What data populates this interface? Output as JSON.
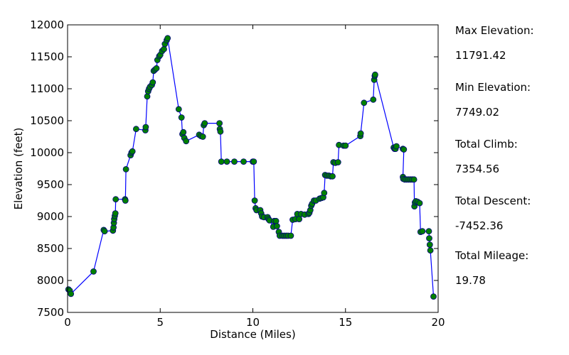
{
  "chart_data": {
    "type": "line",
    "title": "",
    "xlabel": "Distance (Miles)",
    "ylabel": "Elevation (feet)",
    "xlim": [
      0,
      20
    ],
    "ylim": [
      7500,
      12000
    ],
    "xticks": [
      "0",
      "5",
      "10",
      "15",
      "20"
    ],
    "yticks": [
      "7500",
      "8000",
      "8500",
      "9000",
      "9500",
      "10000",
      "10500",
      "11000",
      "11500",
      "12000"
    ],
    "grid": false,
    "legend": "none",
    "line_color": "#0000ff",
    "marker_color": "#008000",
    "series": [
      {
        "points": [
          [
            0.05,
            7860
          ],
          [
            0.12,
            7840
          ],
          [
            0.18,
            7790
          ],
          [
            1.4,
            8140
          ],
          [
            1.95,
            8790
          ],
          [
            2.0,
            8770
          ],
          [
            2.45,
            8780
          ],
          [
            2.48,
            8830
          ],
          [
            2.5,
            8900
          ],
          [
            2.52,
            8960
          ],
          [
            2.55,
            9010
          ],
          [
            2.58,
            9050
          ],
          [
            2.6,
            9270
          ],
          [
            3.1,
            9270
          ],
          [
            3.12,
            9250
          ],
          [
            3.15,
            9740
          ],
          [
            3.4,
            9960
          ],
          [
            3.45,
            10000
          ],
          [
            3.5,
            10020
          ],
          [
            3.7,
            10370
          ],
          [
            4.2,
            10350
          ],
          [
            4.22,
            10400
          ],
          [
            4.3,
            10880
          ],
          [
            4.35,
            10960
          ],
          [
            4.4,
            11000
          ],
          [
            4.45,
            11030
          ],
          [
            4.55,
            11060
          ],
          [
            4.6,
            11100
          ],
          [
            4.65,
            11280
          ],
          [
            4.72,
            11300
          ],
          [
            4.8,
            11320
          ],
          [
            4.85,
            11450
          ],
          [
            4.95,
            11510
          ],
          [
            5.0,
            11530
          ],
          [
            5.1,
            11590
          ],
          [
            5.2,
            11620
          ],
          [
            5.25,
            11700
          ],
          [
            5.35,
            11760
          ],
          [
            5.4,
            11791.42
          ],
          [
            6.0,
            10680
          ],
          [
            6.15,
            10550
          ],
          [
            6.2,
            10290
          ],
          [
            6.25,
            10320
          ],
          [
            6.3,
            10230
          ],
          [
            6.4,
            10180
          ],
          [
            7.1,
            10280
          ],
          [
            7.2,
            10260
          ],
          [
            7.3,
            10250
          ],
          [
            7.35,
            10430
          ],
          [
            7.4,
            10460
          ],
          [
            8.2,
            10460
          ],
          [
            8.22,
            10370
          ],
          [
            8.25,
            10330
          ],
          [
            8.3,
            9860
          ],
          [
            8.6,
            9860
          ],
          [
            9.0,
            9860
          ],
          [
            9.5,
            9860
          ],
          [
            10.0,
            9860
          ],
          [
            10.05,
            9860
          ],
          [
            10.1,
            9250
          ],
          [
            10.15,
            9130
          ],
          [
            10.2,
            9100
          ],
          [
            10.4,
            9100
          ],
          [
            10.45,
            9050
          ],
          [
            10.5,
            9000
          ],
          [
            10.6,
            8990
          ],
          [
            10.8,
            8990
          ],
          [
            10.85,
            8960
          ],
          [
            10.9,
            8940
          ],
          [
            11.1,
            8840
          ],
          [
            11.15,
            8930
          ],
          [
            11.25,
            8930
          ],
          [
            11.3,
            8850
          ],
          [
            11.4,
            8760
          ],
          [
            11.45,
            8700
          ],
          [
            11.6,
            8700
          ],
          [
            11.7,
            8700
          ],
          [
            11.8,
            8700
          ],
          [
            11.9,
            8700
          ],
          [
            12.05,
            8700
          ],
          [
            12.15,
            8950
          ],
          [
            12.3,
            8960
          ],
          [
            12.4,
            9040
          ],
          [
            12.5,
            8960
          ],
          [
            12.6,
            9040
          ],
          [
            12.8,
            9030
          ],
          [
            13.0,
            9040
          ],
          [
            13.05,
            9060
          ],
          [
            13.1,
            9100
          ],
          [
            13.15,
            9170
          ],
          [
            13.2,
            9200
          ],
          [
            13.3,
            9250
          ],
          [
            13.4,
            9250
          ],
          [
            13.6,
            9280
          ],
          [
            13.7,
            9290
          ],
          [
            13.8,
            9300
          ],
          [
            13.85,
            9370
          ],
          [
            13.9,
            9650
          ],
          [
            14.0,
            9640
          ],
          [
            14.1,
            9640
          ],
          [
            14.2,
            9630
          ],
          [
            14.3,
            9630
          ],
          [
            14.35,
            9850
          ],
          [
            14.45,
            9840
          ],
          [
            14.6,
            9850
          ],
          [
            14.65,
            10120
          ],
          [
            14.9,
            10110
          ],
          [
            15.0,
            10110
          ],
          [
            15.8,
            10260
          ],
          [
            15.82,
            10300
          ],
          [
            16.0,
            10780
          ],
          [
            16.5,
            10830
          ],
          [
            16.55,
            11140
          ],
          [
            16.58,
            11200
          ],
          [
            16.6,
            11220
          ],
          [
            17.6,
            10080
          ],
          [
            17.65,
            10060
          ],
          [
            17.7,
            10060
          ],
          [
            17.75,
            10100
          ],
          [
            18.1,
            10060
          ],
          [
            18.15,
            10050
          ],
          [
            18.1,
            9620
          ],
          [
            18.12,
            9590
          ],
          [
            18.2,
            9580
          ],
          [
            18.3,
            9580
          ],
          [
            18.4,
            9580
          ],
          [
            18.5,
            9580
          ],
          [
            18.6,
            9580
          ],
          [
            18.7,
            9580
          ],
          [
            18.72,
            9160
          ],
          [
            18.75,
            9220
          ],
          [
            18.8,
            9240
          ],
          [
            18.9,
            9230
          ],
          [
            19.0,
            9210
          ],
          [
            19.05,
            8760
          ],
          [
            19.15,
            8770
          ],
          [
            19.5,
            8770
          ],
          [
            19.52,
            8660
          ],
          [
            19.55,
            8560
          ],
          [
            19.58,
            8470
          ],
          [
            19.75,
            7749.02
          ]
        ]
      }
    ]
  },
  "stats": [
    {
      "label": "Max Elevation:",
      "value": "11791.42"
    },
    {
      "label": "Min Elevation:",
      "value": "7749.02"
    },
    {
      "label": "Total Climb:",
      "value": "7354.56"
    },
    {
      "label": "Total Descent:",
      "value": "-7452.36"
    },
    {
      "label": "Total Mileage:",
      "value": "19.78"
    }
  ]
}
